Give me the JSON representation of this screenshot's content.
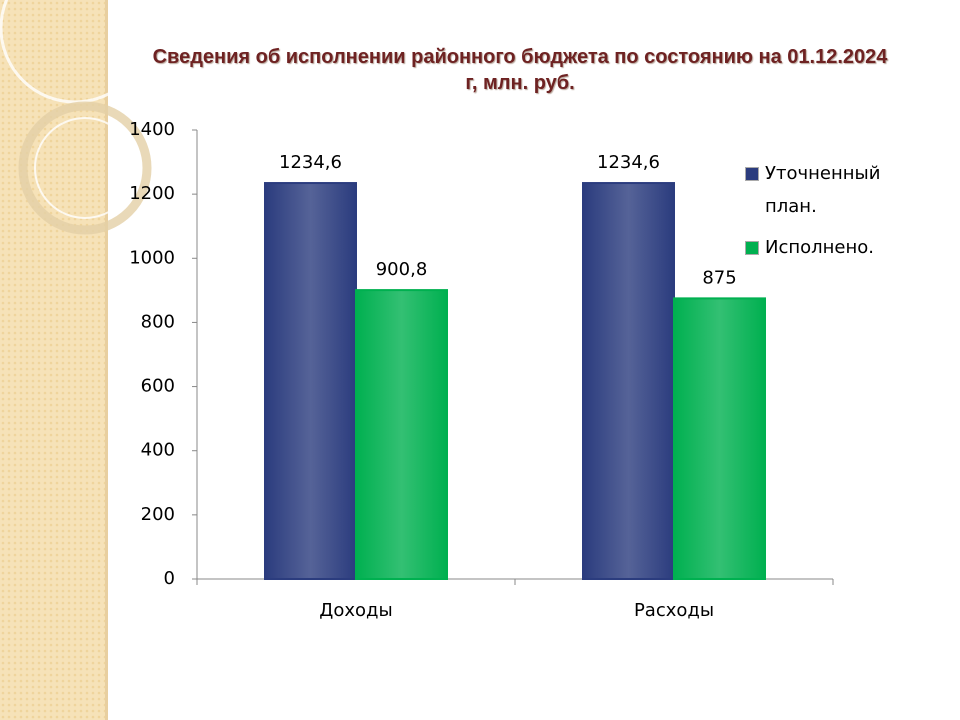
{
  "chart_data": {
    "type": "bar",
    "title": "Сведения об исполнении районного бюджета по состоянию на 01.12.2024 г, млн. руб.",
    "categories": [
      "Доходы",
      "Расходы"
    ],
    "series": [
      {
        "name": "Уточненный план.",
        "color": "#2b3c7e",
        "values": [
          1234.6,
          1234.6
        ],
        "value_labels": [
          "1234,6",
          "1234,6"
        ]
      },
      {
        "name": "Исполнено.",
        "color": "#00b050",
        "values": [
          900.8,
          875
        ],
        "value_labels": [
          "900,8",
          "875"
        ]
      }
    ],
    "ylim": [
      0,
      1400
    ],
    "yticks": [
      0,
      200,
      400,
      600,
      800,
      1000,
      1200,
      1400
    ],
    "grid": false,
    "legend": "right"
  }
}
